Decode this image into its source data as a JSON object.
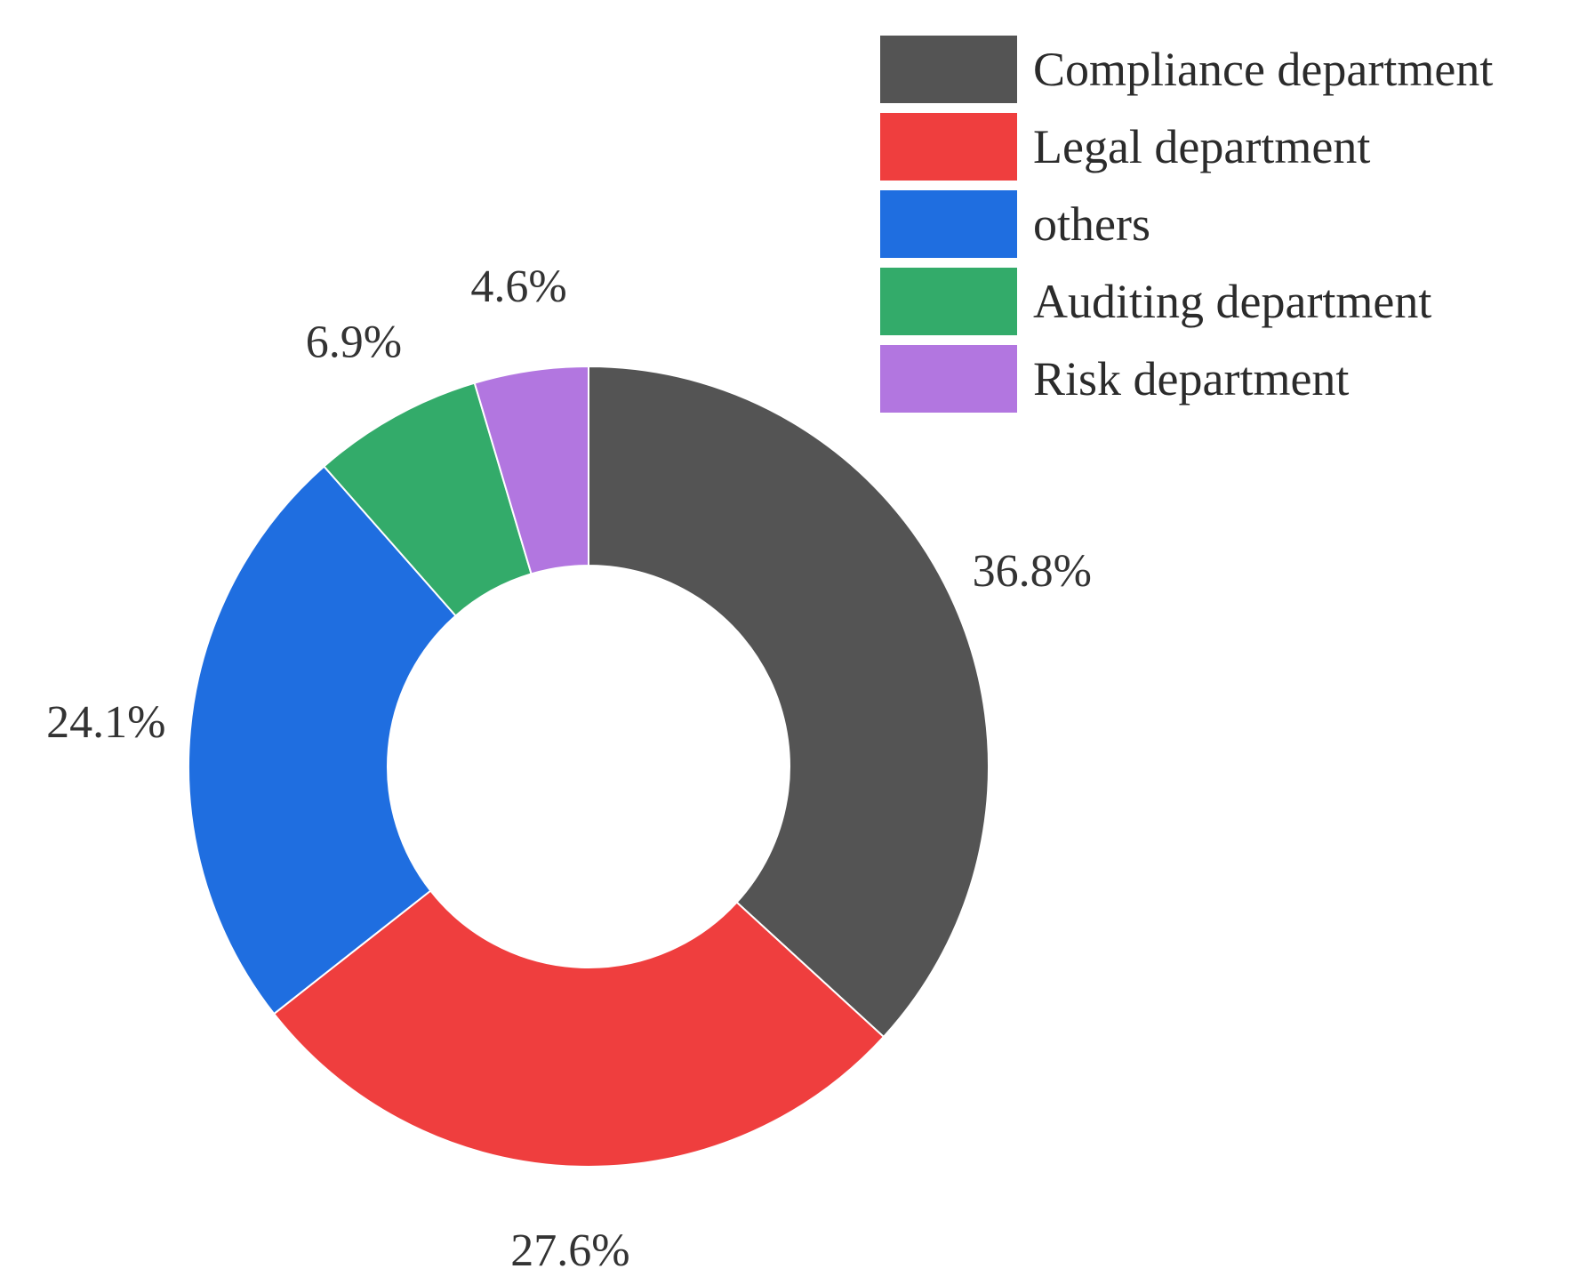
{
  "chart_data": {
    "type": "pie",
    "donut": true,
    "title": "",
    "legend_position": "top-right",
    "slices": [
      {
        "name": "Compliance department",
        "value": 36.8,
        "label": "36.8%",
        "color": "#545454"
      },
      {
        "name": "Legal department",
        "value": 27.6,
        "label": "27.6%",
        "color": "#ef3e3e"
      },
      {
        "name": "others",
        "value": 24.1,
        "label": "24.1%",
        "color": "#1f6ee0"
      },
      {
        "name": "Auditing department",
        "value": 6.9,
        "label": "6.9%",
        "color": "#33ab6a"
      },
      {
        "name": "Risk department",
        "value": 4.6,
        "label": "4.6%",
        "color": "#b276e0"
      }
    ]
  }
}
